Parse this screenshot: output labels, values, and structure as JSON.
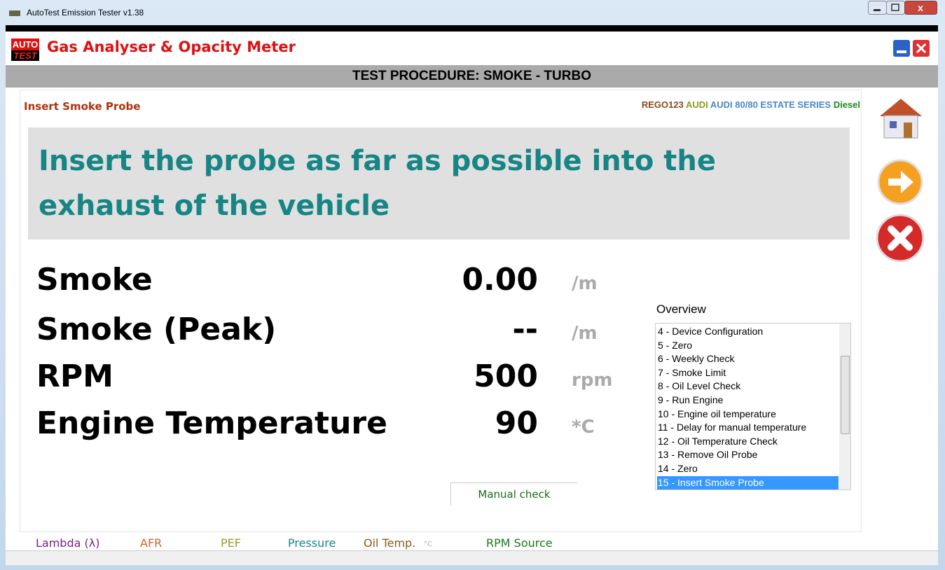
{
  "window": {
    "title": "AutoTest Emission Tester v1.38"
  },
  "app": {
    "logo_top": "AUTO",
    "logo_bottom": "TEST",
    "title": "Gas Analyser & Opacity Meter"
  },
  "banner": "TEST PROCEDURE: SMOKE - TURBO",
  "step": "Insert Smoke Probe",
  "vehicle": [
    "REGO123",
    "AUDI",
    "AUDI 80/80 ESTATE SERIES",
    "Diesel"
  ],
  "instruction": "Insert the probe as far as possible into the exhaust of the vehicle",
  "readings": [
    {
      "label": "Smoke",
      "value": "0.00",
      "unit": "/m"
    },
    {
      "label": "Smoke (Peak)",
      "value": "--",
      "unit": "/m"
    },
    {
      "label": "RPM",
      "value": 500,
      "unit": "rpm"
    },
    {
      "label": "Engine Temperature",
      "value": 90,
      "unit": "*C"
    }
  ],
  "overview": {
    "title": "Overview",
    "items": [
      "4 - Device Configuration",
      "5 - Zero",
      "6 - Weekly Check",
      "7 - Smoke Limit",
      "8 - Oil Level Check",
      "9 - Run Engine",
      "10 - Engine oil temperature",
      "11 - Delay for manual temperature",
      "12 - Oil Temperature Check",
      "13 - Remove Oil Probe",
      "14 - Zero",
      "15 - Insert Smoke Probe"
    ],
    "selected": 11
  },
  "manual_tab": "Manual check",
  "footer": [
    "Lambda (λ)",
    "AFR",
    "PEF",
    "Pressure",
    "Oil Temp.",
    "°C",
    "RPM Source"
  ]
}
